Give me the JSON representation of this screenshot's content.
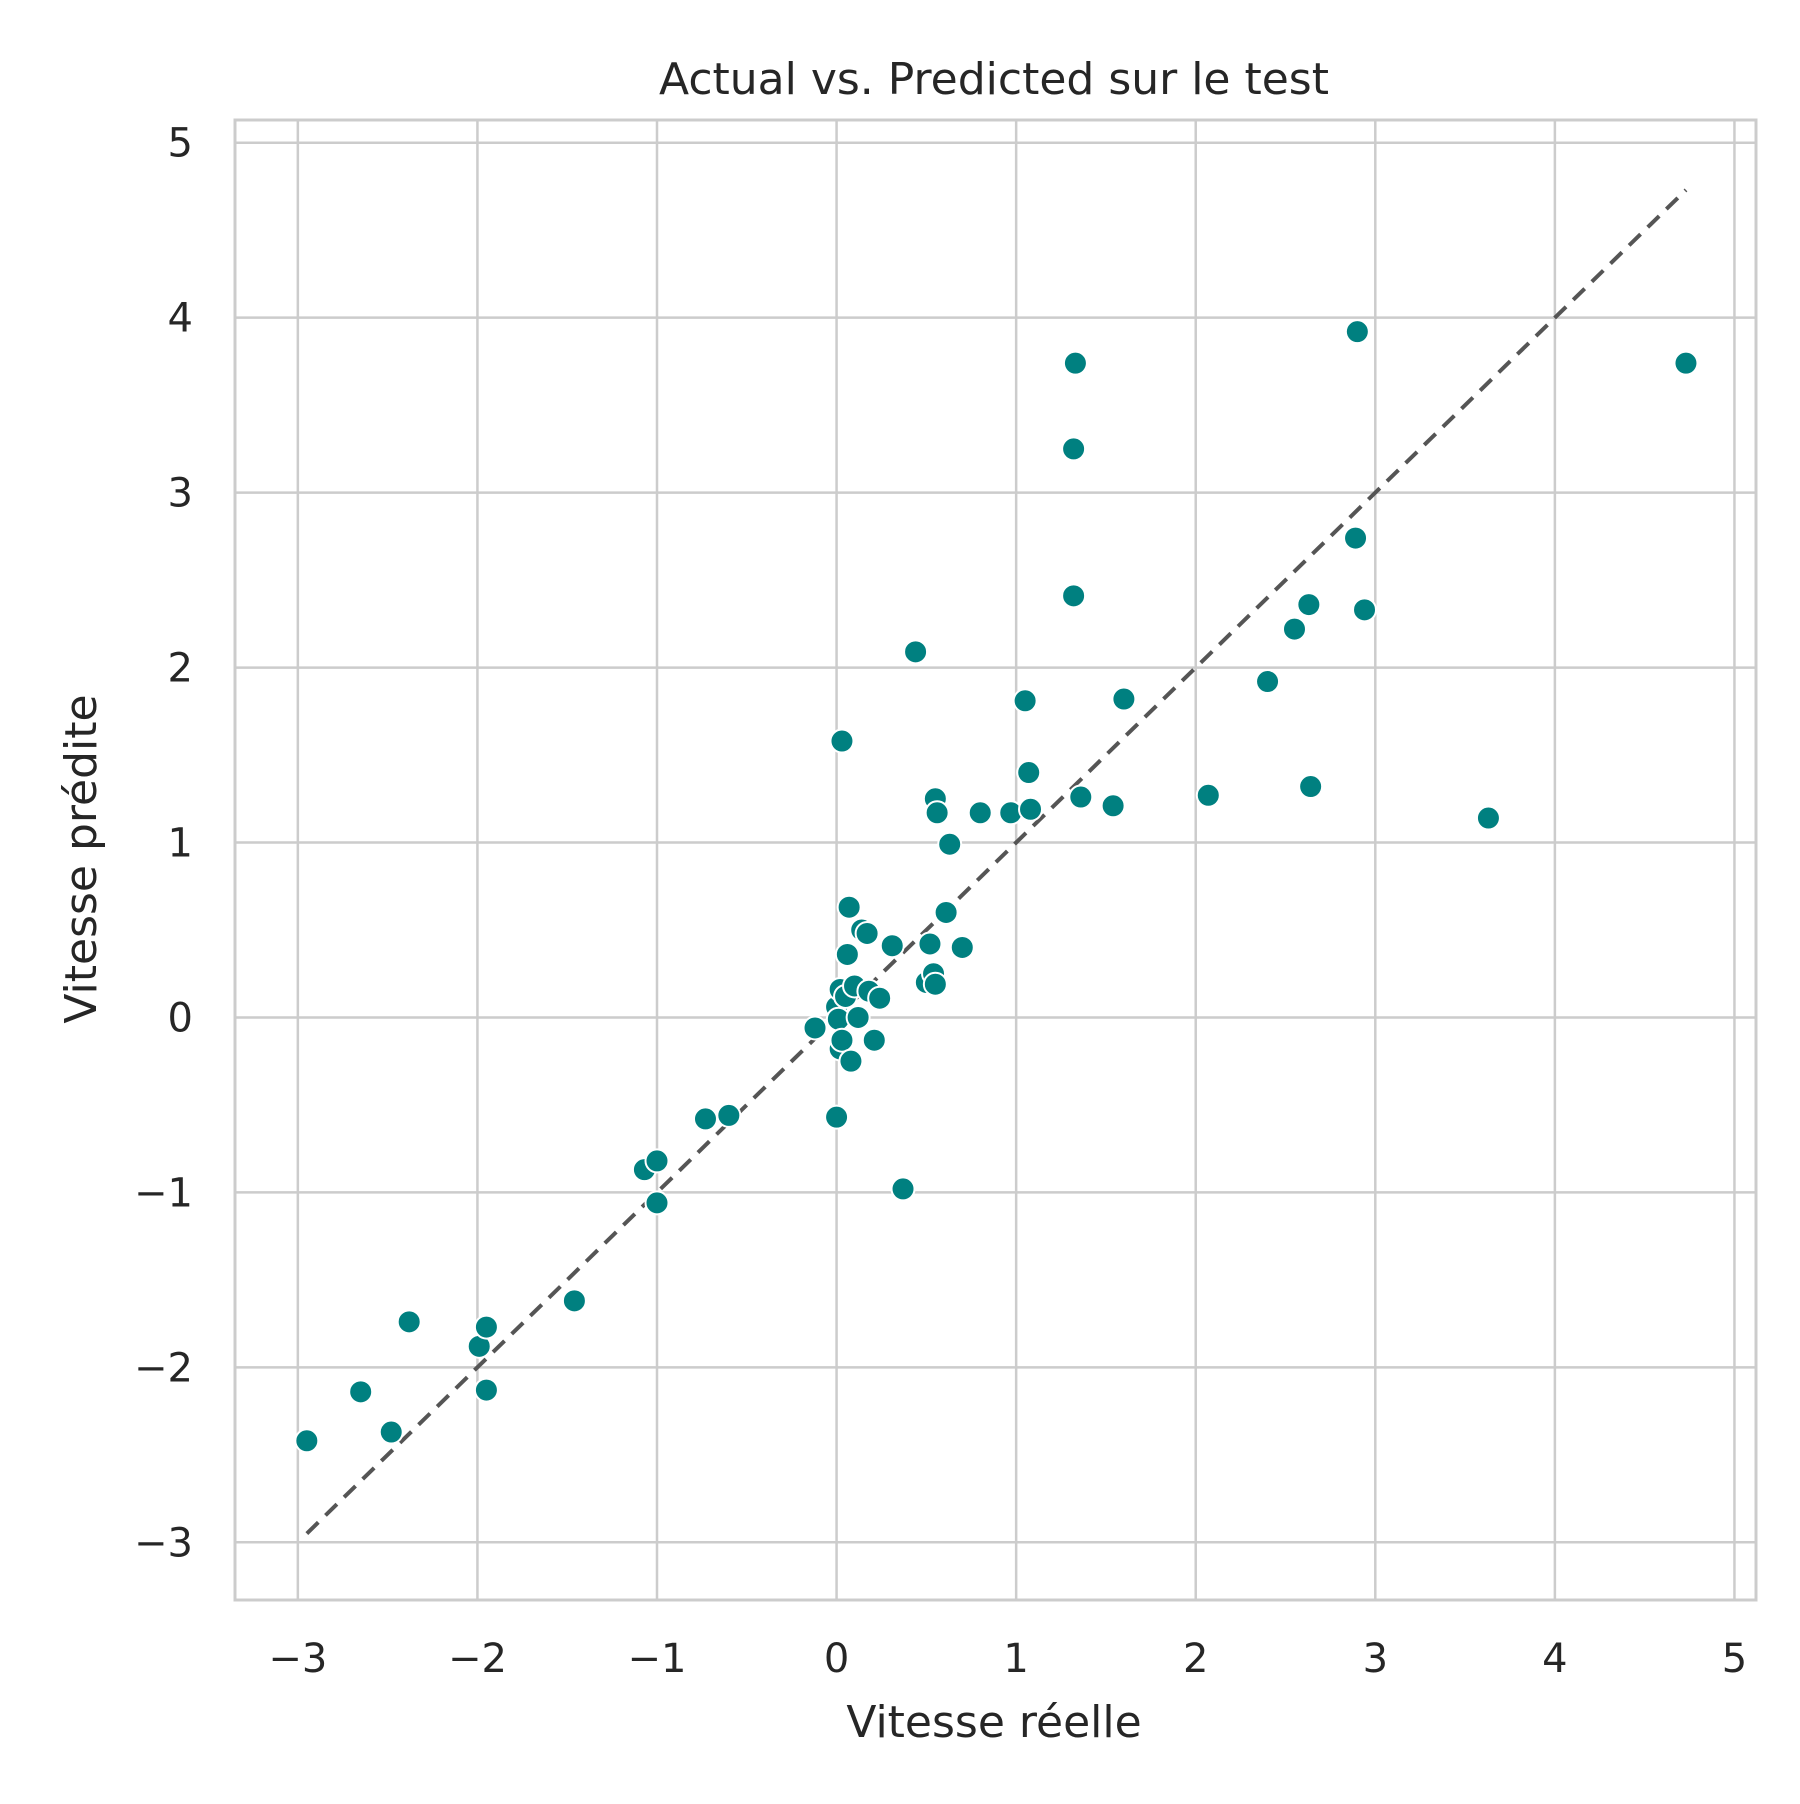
{
  "chart_data": {
    "type": "scatter",
    "title": "Actual vs. Predicted sur le test",
    "xlabel": "Vitesse réelle",
    "ylabel": "Vitesse prédite",
    "xlim": [
      -3.35,
      5.12
    ],
    "ylim": [
      -3.33,
      5.13
    ],
    "xticks": [
      -3,
      -2,
      -1,
      0,
      1,
      2,
      3,
      4,
      5
    ],
    "yticks": [
      -3,
      -2,
      -1,
      0,
      1,
      2,
      3,
      4,
      5
    ],
    "xtick_labels": [
      "−3",
      "−2",
      "−1",
      "0",
      "1",
      "2",
      "3",
      "4",
      "5"
    ],
    "ytick_labels": [
      "−3",
      "−2",
      "−1",
      "0",
      "1",
      "2",
      "3",
      "4",
      "5"
    ],
    "grid": true,
    "point_color": "#008080",
    "reference_line": {
      "from": [
        -2.95,
        -2.95
      ],
      "to": [
        4.73,
        4.73
      ],
      "color": "#555555",
      "style": "dashed"
    },
    "points": [
      [
        -2.95,
        -2.42
      ],
      [
        -2.65,
        -2.14
      ],
      [
        -2.48,
        -2.37
      ],
      [
        -2.38,
        -1.74
      ],
      [
        -1.99,
        -1.88
      ],
      [
        -1.95,
        -1.77
      ],
      [
        -1.95,
        -2.13
      ],
      [
        -1.46,
        -1.62
      ],
      [
        -1.07,
        -0.87
      ],
      [
        -1.0,
        -0.82
      ],
      [
        -1.0,
        -1.06
      ],
      [
        -0.73,
        -0.58
      ],
      [
        -0.6,
        -0.56
      ],
      [
        -0.12,
        -0.06
      ],
      [
        0.0,
        0.06
      ],
      [
        0.0,
        -0.57
      ],
      [
        0.01,
        -0.01
      ],
      [
        0.02,
        0.16
      ],
      [
        0.02,
        -0.18
      ],
      [
        0.03,
        -0.13
      ],
      [
        0.03,
        1.58
      ],
      [
        0.05,
        0.12
      ],
      [
        0.06,
        0.36
      ],
      [
        0.07,
        0.63
      ],
      [
        0.08,
        -0.25
      ],
      [
        0.1,
        0.18
      ],
      [
        0.12,
        0.0
      ],
      [
        0.14,
        0.5
      ],
      [
        0.17,
        0.48
      ],
      [
        0.18,
        0.15
      ],
      [
        0.21,
        -0.13
      ],
      [
        0.24,
        0.11
      ],
      [
        0.31,
        0.41
      ],
      [
        0.37,
        -0.98
      ],
      [
        0.44,
        2.09
      ],
      [
        0.5,
        0.2
      ],
      [
        0.52,
        0.42
      ],
      [
        0.54,
        0.25
      ],
      [
        0.55,
        0.19
      ],
      [
        0.55,
        1.25
      ],
      [
        0.56,
        1.17
      ],
      [
        0.61,
        0.6
      ],
      [
        0.63,
        0.99
      ],
      [
        0.7,
        0.4
      ],
      [
        0.8,
        1.17
      ],
      [
        0.97,
        1.17
      ],
      [
        1.05,
        1.81
      ],
      [
        1.07,
        1.4
      ],
      [
        1.08,
        1.19
      ],
      [
        1.32,
        2.41
      ],
      [
        1.32,
        3.25
      ],
      [
        1.33,
        3.74
      ],
      [
        1.36,
        1.26
      ],
      [
        1.54,
        1.21
      ],
      [
        1.6,
        1.82
      ],
      [
        2.07,
        1.27
      ],
      [
        2.4,
        1.92
      ],
      [
        2.55,
        2.22
      ],
      [
        2.63,
        2.36
      ],
      [
        2.64,
        1.32
      ],
      [
        2.89,
        2.74
      ],
      [
        2.9,
        3.92
      ],
      [
        2.94,
        2.33
      ],
      [
        3.63,
        1.14
      ],
      [
        4.73,
        3.74
      ]
    ]
  }
}
